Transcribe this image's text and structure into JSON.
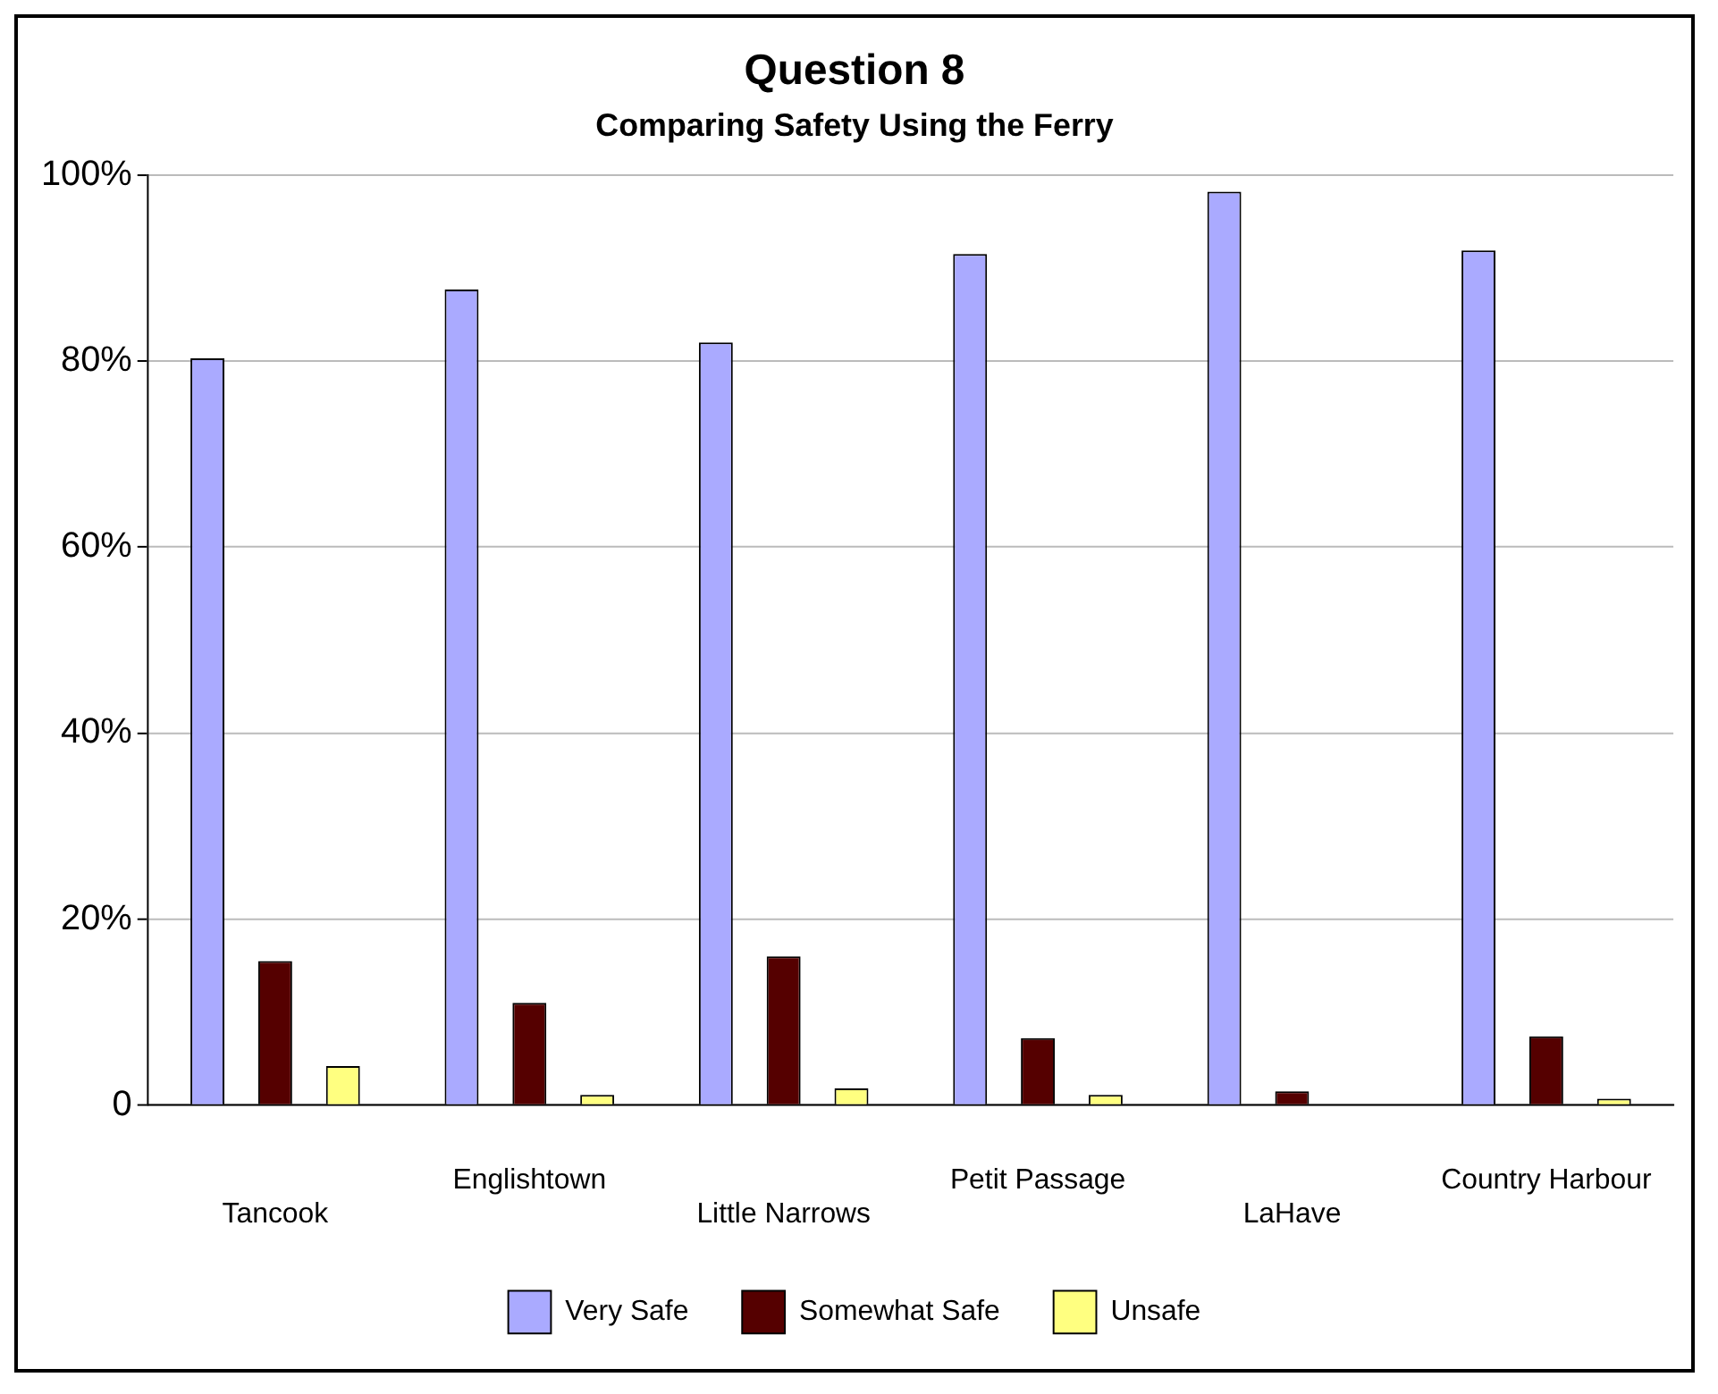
{
  "chart_data": {
    "type": "bar",
    "title": "Question 8",
    "subtitle": "Comparing Safety Using the Ferry",
    "categories": [
      "Tancook",
      "Englishtown",
      "Little Narrows",
      "Petit Passage",
      "LaHave",
      "Country Harbour"
    ],
    "series": [
      {
        "name": "Very Safe",
        "color": "#aaaaff",
        "values": [
          80.3,
          87.7,
          82.0,
          91.5,
          98.2,
          91.9
        ]
      },
      {
        "name": "Somewhat Safe",
        "color": "#550000",
        "values": [
          15.5,
          11.0,
          16.0,
          7.2,
          1.5,
          7.4
        ]
      },
      {
        "name": "Unsafe",
        "color": "#ffff80",
        "values": [
          4.2,
          1.1,
          1.8,
          1.1,
          null,
          0.7
        ]
      }
    ],
    "ylim": [
      0,
      100
    ],
    "yticks": [
      0,
      {
        "value": 20,
        "label": "20%"
      },
      {
        "value": 40,
        "label": "40%"
      },
      {
        "value": 60,
        "label": "60%"
      },
      {
        "value": 80,
        "label": "80%"
      },
      {
        "value": 100,
        "label": "100%"
      }
    ],
    "grid": "y",
    "legend": "bottom"
  }
}
